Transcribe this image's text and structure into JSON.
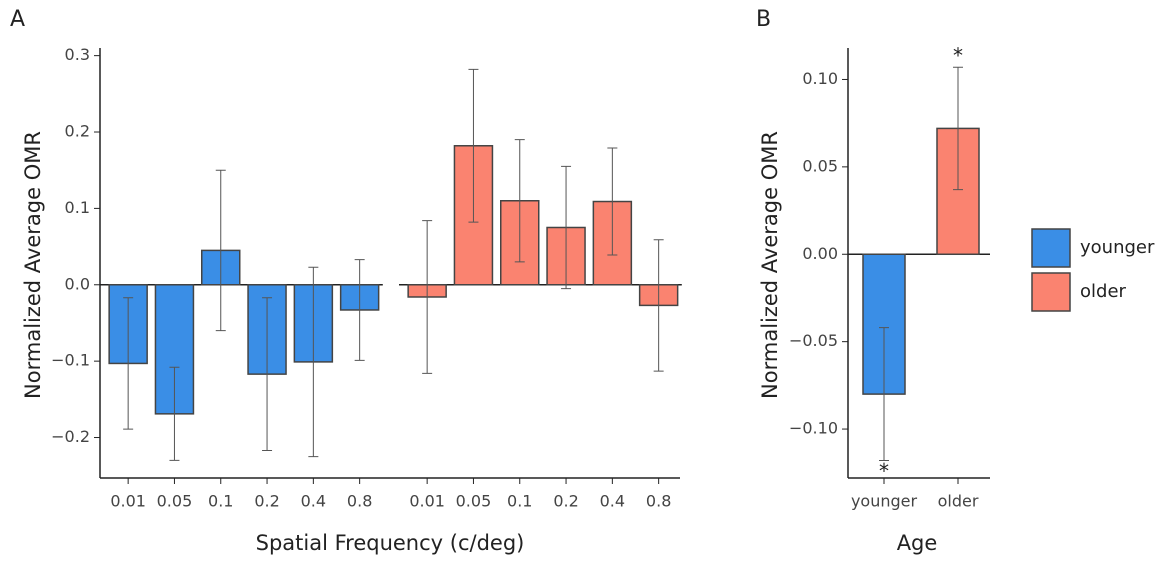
{
  "chart_data": [
    {
      "type": "bar",
      "label": "A",
      "ylabel": "Normalized Average OMR",
      "xlabel": "Spatial Frequency (c/deg)",
      "categories": [
        "0.01",
        "0.05",
        "0.1",
        "0.2",
        "0.4",
        "0.8"
      ],
      "series": [
        {
          "name": "younger",
          "color": "#3a8ee6",
          "values": [
            -0.103,
            -0.169,
            0.045,
            -0.117,
            -0.101,
            -0.033
          ],
          "errors": [
            0.086,
            0.061,
            0.105,
            0.1,
            0.124,
            0.066
          ]
        },
        {
          "name": "older",
          "color": "#fa8370",
          "values": [
            -0.016,
            0.182,
            0.11,
            0.075,
            0.109,
            -0.027
          ],
          "errors": [
            0.1,
            0.1,
            0.08,
            0.08,
            0.07,
            0.086
          ]
        }
      ],
      "ylim": [
        -0.253,
        0.31
      ],
      "yticks": [
        {
          "value": -0.2,
          "label": "−0.2"
        },
        {
          "value": -0.1,
          "label": "−0.1"
        },
        {
          "value": 0,
          "label": "0.0"
        },
        0.1,
        0.2,
        0.3
      ]
    },
    {
      "type": "bar",
      "label": "B",
      "ylabel": "Normalized Average OMR",
      "xlabel": "Age",
      "categories": [
        "younger",
        "older"
      ],
      "colors": [
        "#3a8ee6",
        "#fa8370"
      ],
      "values": [
        -0.08,
        0.072
      ],
      "errors": [
        0.038,
        0.035
      ],
      "significance": [
        "*",
        "*"
      ],
      "ylim": [
        -0.128,
        0.118
      ],
      "yticks": [
        {
          "value": -0.1,
          "label": "−0.10"
        },
        {
          "value": -0.05,
          "label": "−0.05"
        },
        {
          "value": 0,
          "label": "0.00"
        },
        {
          "value": 0.05,
          "label": "0.05"
        },
        {
          "value": 0.1,
          "label": "0.10"
        }
      ]
    }
  ]
}
